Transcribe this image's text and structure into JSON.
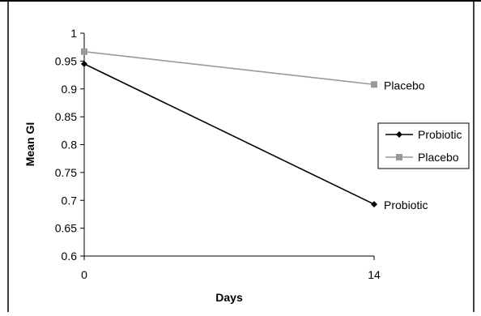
{
  "chart_data": {
    "type": "line",
    "xlabel": "Days",
    "ylabel": "Mean GI",
    "x": [
      0,
      14
    ],
    "x_ticks": [
      "0",
      "14"
    ],
    "ylim": [
      0.6,
      1
    ],
    "y_ticks": [
      "0.6",
      "0.65",
      "0.7",
      "0.75",
      "0.8",
      "0.85",
      "0.9",
      "0.95",
      "1"
    ],
    "grid": false,
    "legend_position": "right",
    "series": [
      {
        "name": "Probiotic",
        "values": [
          0.945,
          0.693
        ],
        "color": "#000000",
        "marker": "diamond",
        "end_label": "Probiotic"
      },
      {
        "name": "Placebo",
        "values": [
          0.967,
          0.908
        ],
        "color": "#999999",
        "marker": "square",
        "end_label": "Placebo"
      }
    ]
  }
}
